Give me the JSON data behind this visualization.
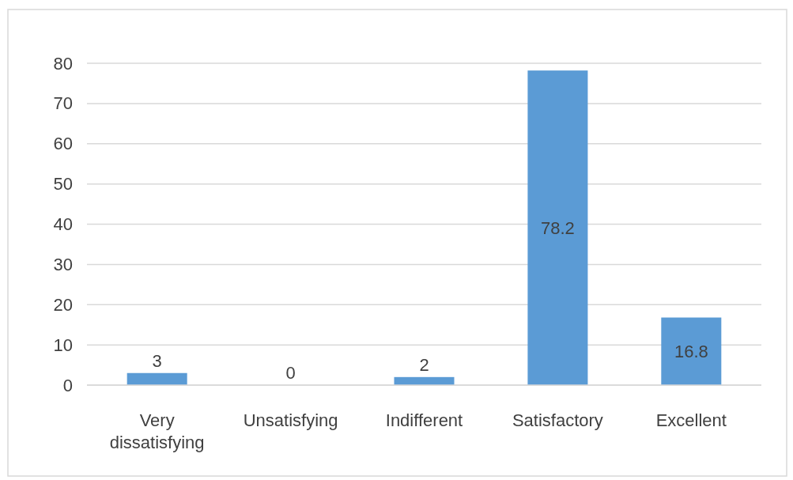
{
  "chart_data": {
    "type": "bar",
    "categories": [
      "Very dissatisfying",
      "Unsatisfying",
      "Indifferent",
      "Satisfactory",
      "Excellent"
    ],
    "values": [
      3,
      0,
      2,
      78.2,
      16.8
    ],
    "color": "#5b9bd5",
    "ylim": [
      0,
      80
    ],
    "yticks": [
      0,
      10,
      20,
      30,
      40,
      50,
      60,
      70,
      80
    ],
    "grid": "y",
    "data_labels": true
  }
}
